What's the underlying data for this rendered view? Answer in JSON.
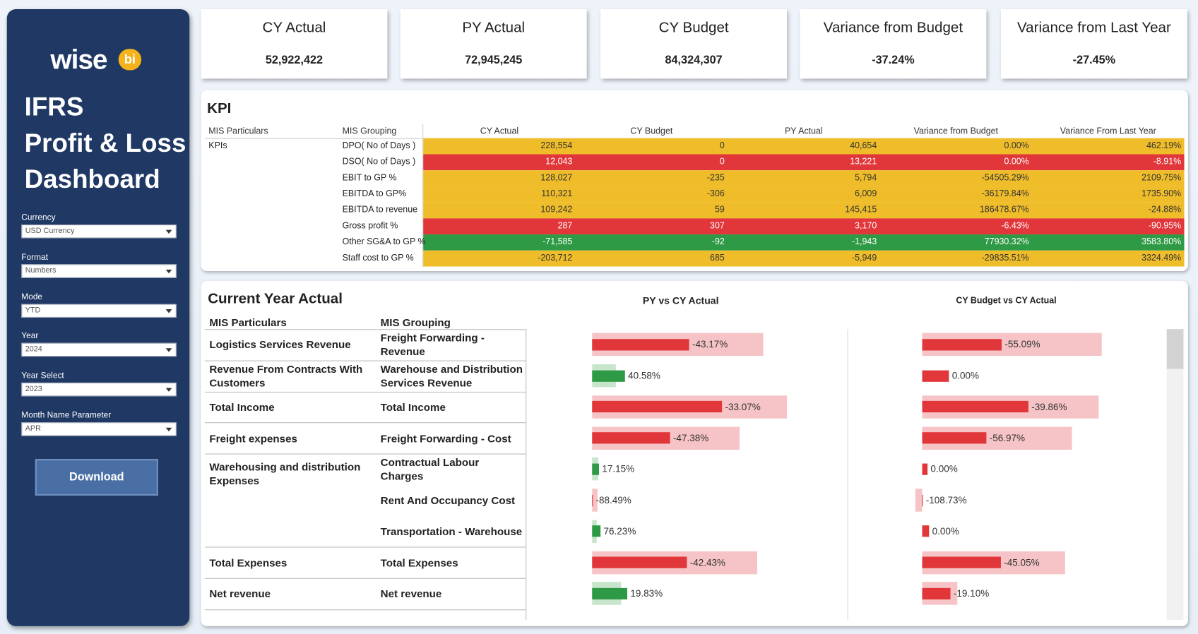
{
  "sidebar": {
    "logo": "wise",
    "logo_badge": "bi",
    "title": [
      "IFRS",
      "Profit & Loss",
      "Dashboard"
    ],
    "filters": [
      {
        "label": "Currency",
        "value": "USD Currency"
      },
      {
        "label": "Format",
        "value": "Numbers"
      },
      {
        "label": "Mode",
        "value": "YTD"
      },
      {
        "label": "Year",
        "value": "2024"
      },
      {
        "label": "Year Select",
        "value": "2023"
      },
      {
        "label": "Month Name Parameter",
        "value": "APR"
      }
    ],
    "button": "Download"
  },
  "cards": [
    {
      "title": "CY Actual",
      "value": "52,922,422"
    },
    {
      "title": "PY Actual",
      "value": "72,945,245"
    },
    {
      "title": "CY Budget",
      "value": "84,324,307"
    },
    {
      "title": "Variance from Budget",
      "value": "-37.24%"
    },
    {
      "title": "Variance from Last Year",
      "value": "-27.45%"
    }
  ],
  "kpi": {
    "title": "KPI",
    "columns": [
      "MIS Particulars",
      "MIS Grouping",
      "CY Actual",
      "CY Budget",
      "PY Actual",
      "Variance from Budget",
      "Variance From Last Year"
    ],
    "particular": "KPIs",
    "rows": [
      {
        "grouping": "DPO( No of Days )",
        "values": [
          "228,554",
          "0",
          "40,654",
          "0.00%",
          "462.19%"
        ],
        "fill": "#f0bd2a",
        "text": "#333333"
      },
      {
        "grouping": "DSO( No of Days )",
        "values": [
          "12,043",
          "0",
          "13,221",
          "0.00%",
          "-8.91%"
        ],
        "fill": "#e1363a",
        "text": "#ffffff"
      },
      {
        "grouping": "EBIT to GP %",
        "values": [
          "128,027",
          "-235",
          "5,794",
          "-54505.29%",
          "2109.75%"
        ],
        "fill": "#f0bd2a",
        "text": "#333333"
      },
      {
        "grouping": "EBITDA to GP%",
        "values": [
          "110,321",
          "-306",
          "6,009",
          "-36179.84%",
          "1735.90%"
        ],
        "fill": "#f0bd2a",
        "text": "#333333"
      },
      {
        "grouping": "EBITDA to revenue",
        "values": [
          "109,242",
          "59",
          "145,415",
          "186478.67%",
          "-24.88%"
        ],
        "fill": "#f0bd2a",
        "text": "#333333"
      },
      {
        "grouping": "Gross profit %",
        "values": [
          "287",
          "307",
          "3,170",
          "-6.43%",
          "-90.95%"
        ],
        "fill": "#e1363a",
        "text": "#ffffff"
      },
      {
        "grouping": "Other SG&A to GP %",
        "values": [
          "-71,585",
          "-92",
          "-1,943",
          "77930.32%",
          "3583.80%"
        ],
        "fill": "#2f9a45",
        "text": "#ffffff"
      },
      {
        "grouping": "Staff cost to GP %",
        "values": [
          "-203,712",
          "685",
          "-5,949",
          "-29835.51%",
          "3324.49%"
        ],
        "fill": "#f0bd2a",
        "text": "#333333"
      }
    ]
  },
  "detail": {
    "title": "Current Year Actual",
    "columns": [
      "MIS Particulars",
      "MIS Grouping"
    ],
    "charts": [
      {
        "title": "PY vs CY Actual",
        "xlim": [
          -85,
          333
        ]
      },
      {
        "title": "CY Budget  vs CY Actual",
        "xlim": [
          -97,
          318
        ]
      }
    ],
    "tones": {
      "negative": [
        "#e1363a",
        "#f6c4c6"
      ],
      "positive": [
        "#2f9a45",
        "#c6e5cb"
      ]
    },
    "rows": [
      {
        "particular": "Logistics Services Revenue",
        "items": [
          {
            "grouping": "Freight Forwarding - Revenue",
            "bars": [
              {
                "cy": 127,
                "ref": 224,
                "label": "-43.17%",
                "tone": "negative"
              },
              {
                "cy": 104,
                "ref": 235,
                "label": "-55.09%",
                "tone": "negative"
              }
            ]
          }
        ]
      },
      {
        "particular": "Revenue From Contracts With Customers",
        "items": [
          {
            "grouping": "Warehouse and Distribution Services Revenue",
            "bars": [
              {
                "cy": 43,
                "ref": 30.6,
                "label": "40.58%",
                "tone": "positive"
              },
              {
                "cy": 35,
                "ref": 0,
                "label": "0.00%",
                "tone": "negative"
              }
            ]
          }
        ]
      },
      {
        "particular": "Total Income",
        "items": [
          {
            "grouping": "Total Income",
            "bars": [
              {
                "cy": 170,
                "ref": 255,
                "label": "-33.07%",
                "tone": "negative"
              },
              {
                "cy": 139,
                "ref": 231,
                "label": "-39.86%",
                "tone": "negative"
              }
            ]
          }
        ]
      },
      {
        "particular": "Freight expenses",
        "items": [
          {
            "grouping": "Freight Forwarding - Cost",
            "bars": [
              {
                "cy": 102,
                "ref": 193,
                "label": "-47.38%",
                "tone": "negative"
              },
              {
                "cy": 84,
                "ref": 196,
                "label": "-56.97%",
                "tone": "negative"
              }
            ]
          }
        ]
      },
      {
        "particular": "Warehousing and distribution Expenses",
        "items": [
          {
            "grouping": "Contractual Labour Charges",
            "bars": [
              {
                "cy": 9,
                "ref": 7.7,
                "label": "17.15%",
                "tone": "positive"
              },
              {
                "cy": 7,
                "ref": 0,
                "label": "0.00%",
                "tone": "negative"
              }
            ]
          },
          {
            "grouping": "Rent And Occupancy Cost",
            "bars": [
              {
                "cy": 0.8,
                "ref": 7,
                "label": "-88.49%",
                "tone": "negative"
              },
              {
                "cy": 0.8,
                "ref": -9,
                "label": "-108.73%",
                "tone": "negative"
              }
            ]
          },
          {
            "grouping": "Transportation - Warehouse",
            "bars": [
              {
                "cy": 11,
                "ref": 6.2,
                "label": "76.23%",
                "tone": "positive"
              },
              {
                "cy": 9,
                "ref": 0,
                "label": "0.00%",
                "tone": "negative"
              }
            ]
          }
        ]
      },
      {
        "particular": "Total Expenses",
        "items": [
          {
            "grouping": "Total Expenses",
            "bars": [
              {
                "cy": 124,
                "ref": 216,
                "label": "-42.43%",
                "tone": "negative"
              },
              {
                "cy": 103,
                "ref": 187,
                "label": "-45.05%",
                "tone": "negative"
              }
            ]
          }
        ]
      },
      {
        "particular": "Net revenue",
        "items": [
          {
            "grouping": "Net revenue",
            "bars": [
              {
                "cy": 46,
                "ref": 38,
                "label": "19.83%",
                "tone": "positive"
              },
              {
                "cy": 37,
                "ref": 46,
                "label": "-19.10%",
                "tone": "negative"
              }
            ]
          }
        ]
      }
    ]
  }
}
